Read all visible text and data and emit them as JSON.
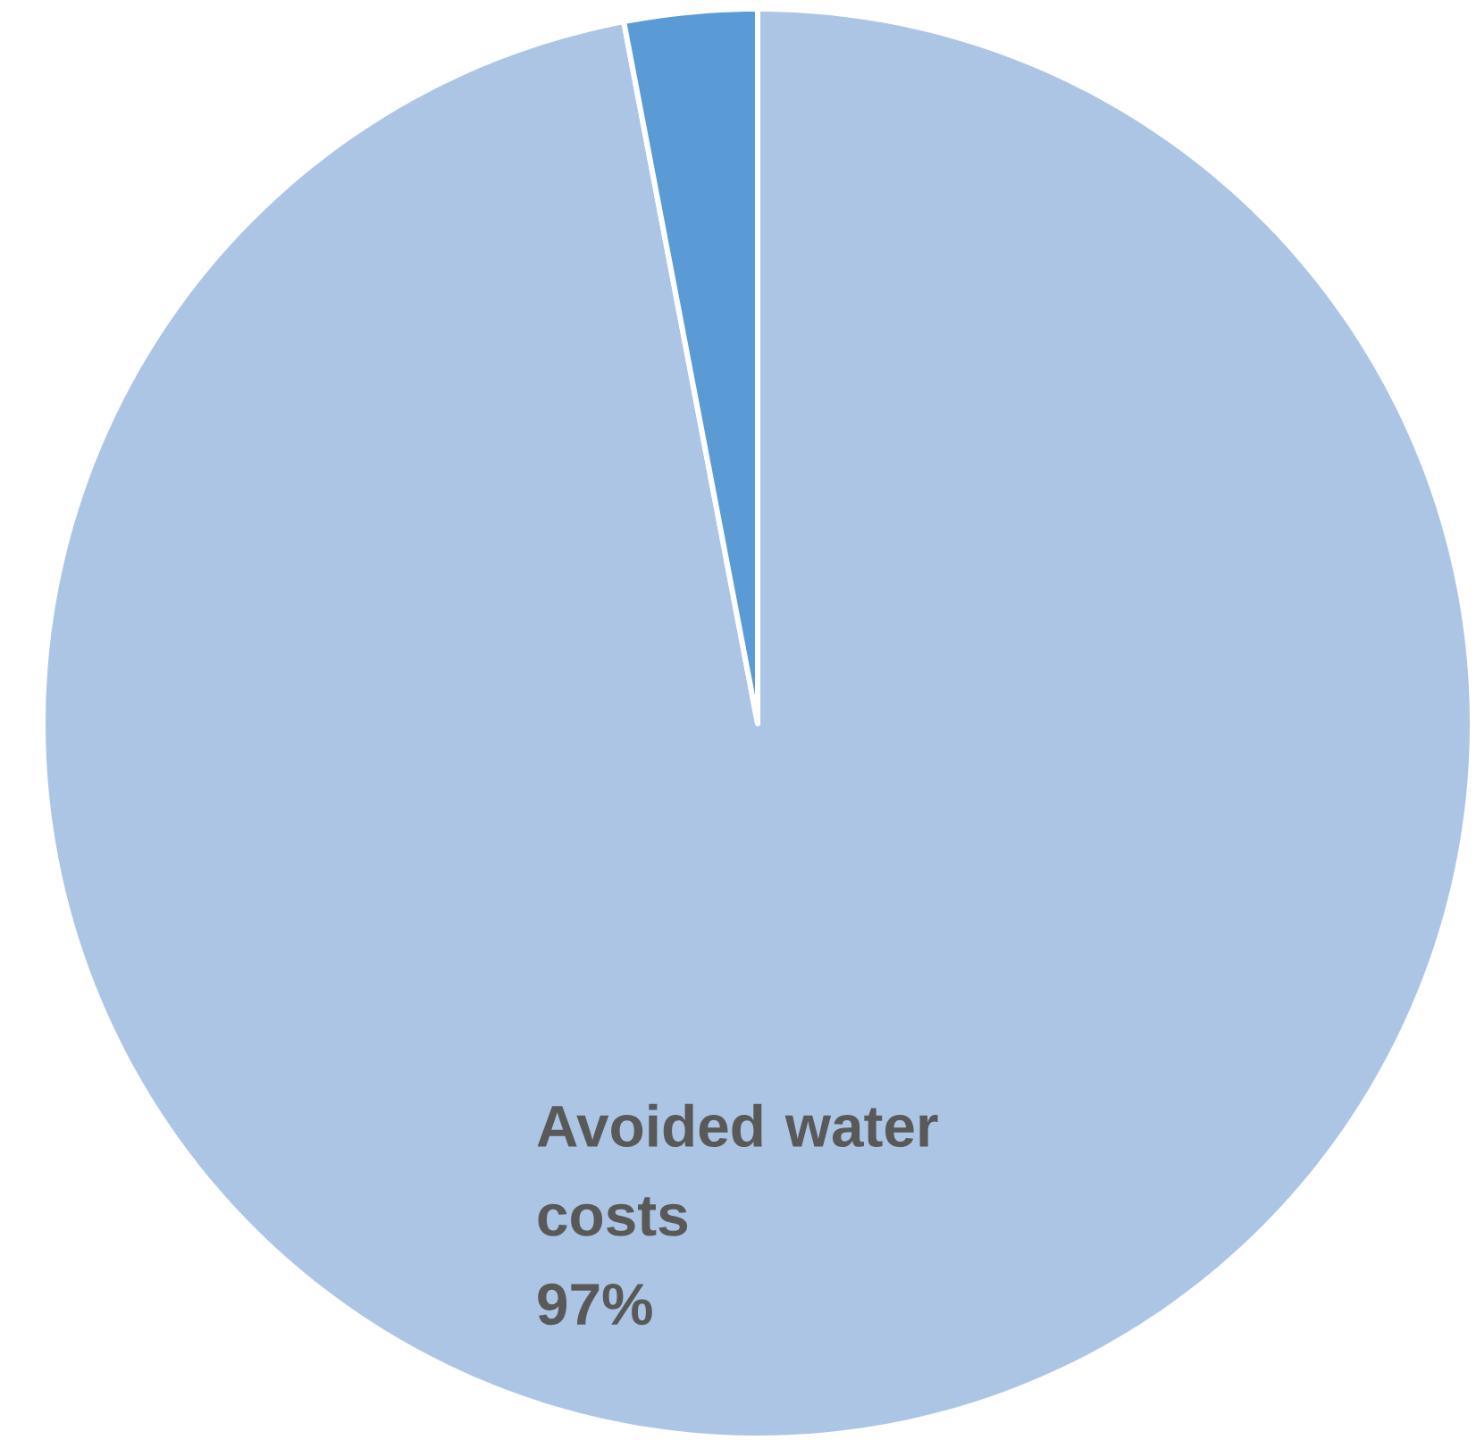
{
  "chart_data": {
    "type": "pie",
    "categories": [
      "Avoided water costs",
      null
    ],
    "values": [
      97,
      3
    ],
    "colors": [
      "#adc5e5",
      "#5b9bd5"
    ],
    "value_labels": [
      "97%",
      null
    ]
  }
}
